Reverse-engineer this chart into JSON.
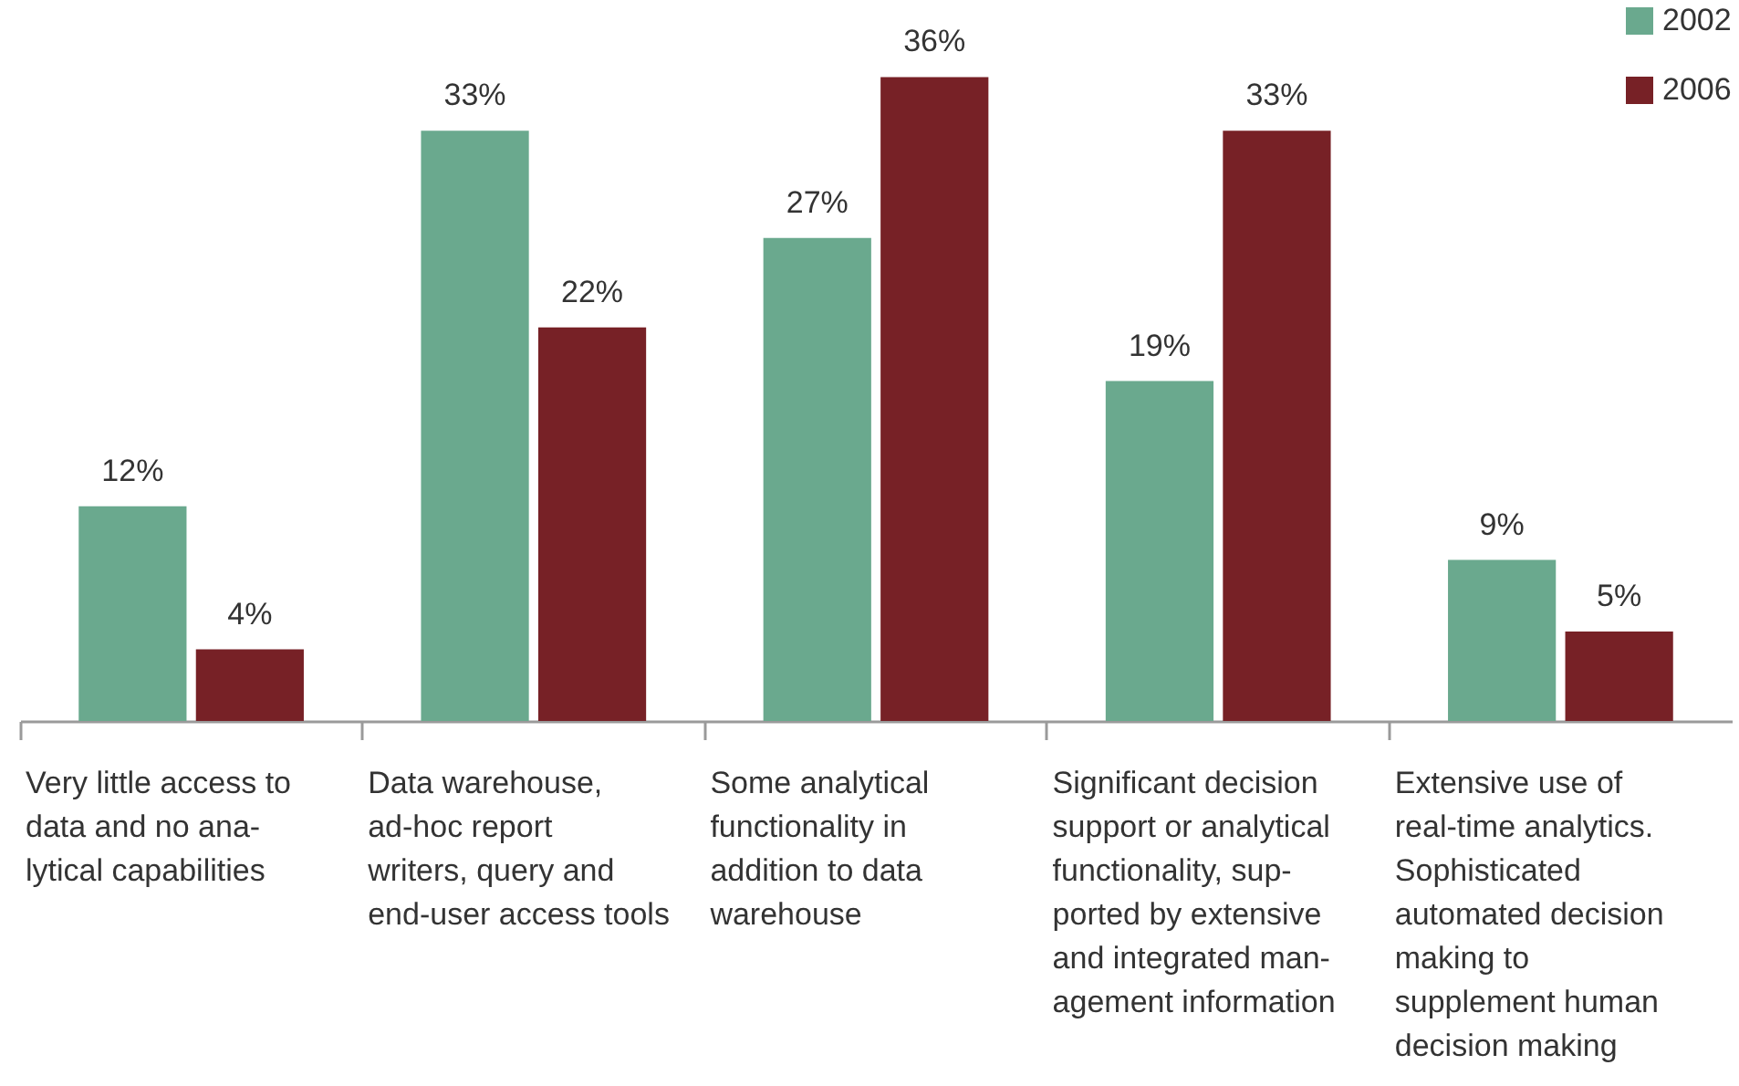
{
  "chart_data": {
    "type": "bar",
    "categories": [
      "Very little access to\ndata and no ana-\nlytical capabilities",
      "Data warehouse,\nad-hoc report\nwriters, query and\nend-user access tools",
      "Some analytical\nfunctionality in\naddition to data\nwarehouse",
      "Significant decision\nsupport or analytical\nfunctionality, sup-\nported by extensive\nand integrated man-\nagement information",
      "Extensive use of\nreal-time analytics.\nSophisticated\nautomated decision\nmaking to\nsupplement human\ndecision making"
    ],
    "series": [
      {
        "name": "2002",
        "color": "#6aa98e",
        "values": [
          12,
          33,
          27,
          19,
          9
        ],
        "value_labels": [
          "12%",
          "33%",
          "27%",
          "19%",
          "9%"
        ]
      },
      {
        "name": "2006",
        "color": "#772126",
        "values": [
          4,
          22,
          36,
          33,
          5
        ],
        "value_labels": [
          "4%",
          "22%",
          "36%",
          "33%",
          "5%"
        ]
      }
    ],
    "ylim": [
      0,
      40
    ],
    "tick_labels": "x",
    "grid": false,
    "legend": "top right"
  }
}
